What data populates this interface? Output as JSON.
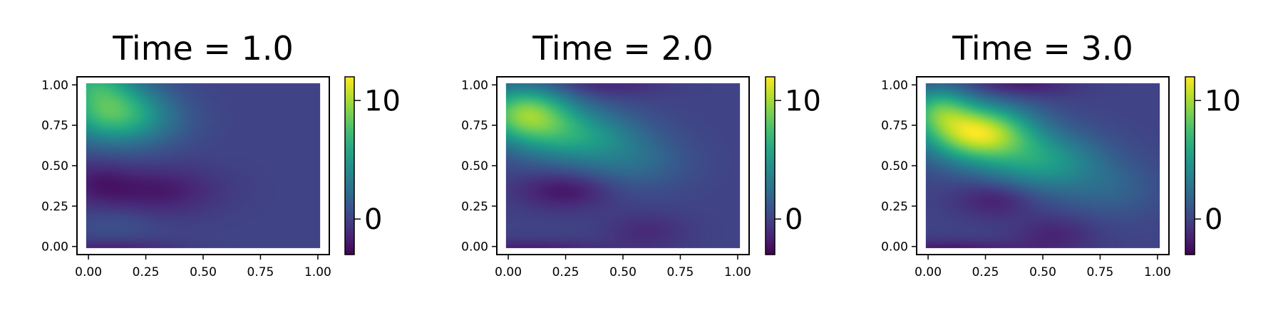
{
  "chart_data": [
    {
      "type": "heatmap",
      "title": "Time = 1.0",
      "xlim": [
        -0.05,
        1.05
      ],
      "ylim": [
        -0.05,
        1.05
      ],
      "x_ticks": [
        "0.00",
        "0.25",
        "0.50",
        "0.75",
        "1.00"
      ],
      "y_ticks": [
        "0.00",
        "0.25",
        "0.50",
        "0.75",
        "1.00"
      ],
      "colorbar": {
        "min": -3,
        "max": 12,
        "ticks": [
          "0",
          "10"
        ],
        "colormap": "viridis"
      },
      "field": [
        {
          "x": 0.08,
          "y": 0.85,
          "value": 7.0,
          "sx": 0.14,
          "sy": 0.14
        },
        {
          "x": 0.02,
          "y": 1.02,
          "value": 3.0,
          "sx": 0.1,
          "sy": 0.08
        },
        {
          "x": 0.25,
          "y": 0.78,
          "value": 2.5,
          "sx": 0.14,
          "sy": 0.12
        },
        {
          "x": 0.3,
          "y": 0.35,
          "value": -2.0,
          "sx": 0.18,
          "sy": 0.1
        },
        {
          "x": 0.05,
          "y": 0.4,
          "value": -1.5,
          "sx": 0.1,
          "sy": 0.1
        },
        {
          "x": 0.1,
          "y": -0.03,
          "value": -2.0,
          "sx": 0.2,
          "sy": 0.05
        },
        {
          "x": 0.12,
          "y": 0.15,
          "value": 0.8,
          "sx": 0.12,
          "sy": 0.07
        }
      ]
    },
    {
      "type": "heatmap",
      "title": "Time = 2.0",
      "xlim": [
        -0.05,
        1.05
      ],
      "ylim": [
        -0.05,
        1.05
      ],
      "x_ticks": [
        "0.00",
        "0.25",
        "0.50",
        "0.75",
        "1.00"
      ],
      "y_ticks": [
        "0.00",
        "0.25",
        "0.50",
        "0.75",
        "1.00"
      ],
      "colorbar": {
        "min": -3,
        "max": 12,
        "ticks": [
          "0",
          "10"
        ],
        "colormap": "viridis"
      },
      "field": [
        {
          "x": 0.08,
          "y": 0.82,
          "value": 8.5,
          "sx": 0.14,
          "sy": 0.12
        },
        {
          "x": 0.3,
          "y": 0.68,
          "value": 5.0,
          "sx": 0.18,
          "sy": 0.12
        },
        {
          "x": 0.55,
          "y": 0.52,
          "value": 2.0,
          "sx": 0.16,
          "sy": 0.12
        },
        {
          "x": 0.25,
          "y": 0.35,
          "value": -2.2,
          "sx": 0.14,
          "sy": 0.08
        },
        {
          "x": 0.4,
          "y": 1.0,
          "value": -1.5,
          "sx": 0.18,
          "sy": 0.06
        },
        {
          "x": 0.1,
          "y": -0.03,
          "value": -2.2,
          "sx": 0.24,
          "sy": 0.05
        },
        {
          "x": 0.6,
          "y": 0.1,
          "value": -1.2,
          "sx": 0.12,
          "sy": 0.08
        }
      ]
    },
    {
      "type": "heatmap",
      "title": "Time = 3.0",
      "xlim": [
        -0.05,
        1.05
      ],
      "ylim": [
        -0.05,
        1.05
      ],
      "x_ticks": [
        "0.00",
        "0.25",
        "0.50",
        "0.75",
        "1.00"
      ],
      "y_ticks": [
        "0.00",
        "0.25",
        "0.50",
        "0.75",
        "1.00"
      ],
      "colorbar": {
        "min": -3,
        "max": 12,
        "ticks": [
          "0",
          "10"
        ],
        "colormap": "viridis"
      },
      "field": [
        {
          "x": 0.22,
          "y": 0.7,
          "value": 11.0,
          "sx": 0.16,
          "sy": 0.12
        },
        {
          "x": 0.05,
          "y": 0.85,
          "value": 5.5,
          "sx": 0.1,
          "sy": 0.1
        },
        {
          "x": 0.5,
          "y": 0.52,
          "value": 5.0,
          "sx": 0.18,
          "sy": 0.13
        },
        {
          "x": 0.8,
          "y": 0.35,
          "value": 1.5,
          "sx": 0.14,
          "sy": 0.12
        },
        {
          "x": 0.3,
          "y": 0.3,
          "value": -2.0,
          "sx": 0.12,
          "sy": 0.08
        },
        {
          "x": 0.4,
          "y": 1.0,
          "value": -2.0,
          "sx": 0.16,
          "sy": 0.06
        },
        {
          "x": 0.1,
          "y": -0.03,
          "value": -2.5,
          "sx": 0.24,
          "sy": 0.05
        },
        {
          "x": 0.55,
          "y": 0.08,
          "value": -1.5,
          "sx": 0.12,
          "sy": 0.08
        }
      ]
    }
  ]
}
